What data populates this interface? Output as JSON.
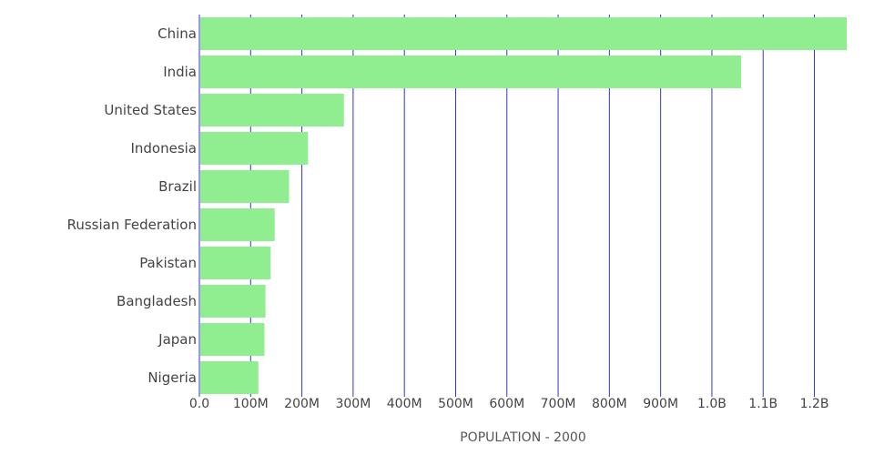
{
  "chart_data": {
    "type": "bar",
    "orientation": "horizontal",
    "categories": [
      "China",
      "India",
      "United States",
      "Indonesia",
      "Brazil",
      "Russian Federation",
      "Pakistan",
      "Bangladesh",
      "Japan",
      "Nigeria"
    ],
    "values": [
      1263000000,
      1057000000,
      282000000,
      212000000,
      175000000,
      147000000,
      139000000,
      129000000,
      127000000,
      115000000
    ],
    "xlabel": "POPULATION - 2000",
    "xlim": [
      0,
      1263000000
    ],
    "xticks": [
      0,
      100000000,
      200000000,
      300000000,
      400000000,
      500000000,
      600000000,
      700000000,
      800000000,
      900000000,
      1000000000,
      1100000000,
      1200000000
    ],
    "xtick_labels": [
      "0.0",
      "100M",
      "200M",
      "300M",
      "400M",
      "500M",
      "600M",
      "700M",
      "800M",
      "900M",
      "1.0B",
      "1.1B",
      "1.2B"
    ],
    "grid": "vertical",
    "colors": {
      "bar": "#90ee90",
      "grid": "#3333cc",
      "text": "#444444"
    }
  }
}
